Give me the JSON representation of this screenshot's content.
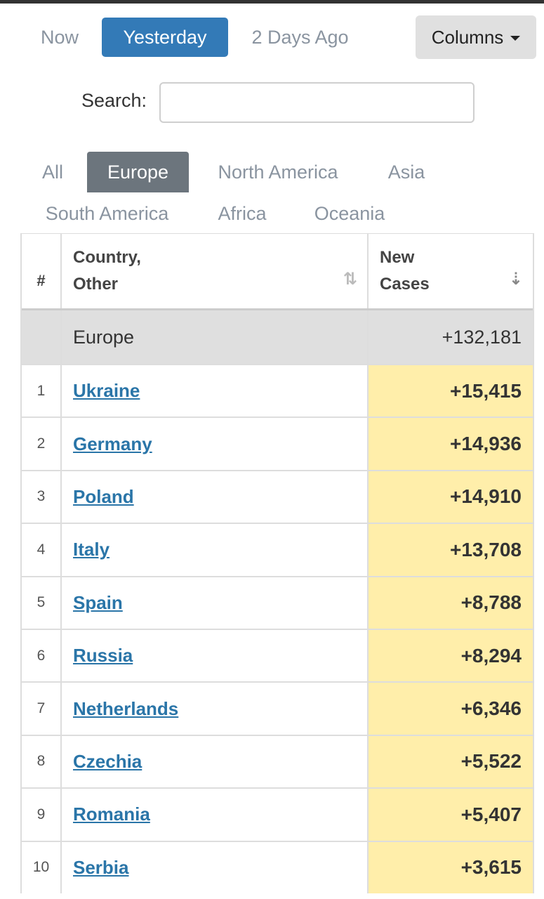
{
  "day_tabs": [
    "Now",
    "Yesterday",
    "2 Days Ago"
  ],
  "active_day": "Yesterday",
  "columns_button": "Columns",
  "search": {
    "label": "Search:",
    "value": "",
    "placeholder": ""
  },
  "continent_tabs": [
    "All",
    "Europe",
    "North America",
    "Asia",
    "South America",
    "Africa",
    "Oceania"
  ],
  "active_continent": "Europe",
  "table": {
    "headers": {
      "num": "#",
      "country_line1": "Country,",
      "country_line2": "Other",
      "cases_line1": "New",
      "cases_line2": "Cases"
    },
    "total": {
      "name": "Europe",
      "new_cases": "+132,181"
    },
    "rows": [
      {
        "num": "1",
        "country": "Ukraine",
        "new_cases": "+15,415"
      },
      {
        "num": "2",
        "country": "Germany",
        "new_cases": "+14,936"
      },
      {
        "num": "3",
        "country": "Poland",
        "new_cases": "+14,910"
      },
      {
        "num": "4",
        "country": "Italy",
        "new_cases": "+13,708"
      },
      {
        "num": "5",
        "country": "Spain",
        "new_cases": "+8,788"
      },
      {
        "num": "6",
        "country": "Russia",
        "new_cases": "+8,294"
      },
      {
        "num": "7",
        "country": "Netherlands",
        "new_cases": "+6,346"
      },
      {
        "num": "8",
        "country": "Czechia",
        "new_cases": "+5,522"
      },
      {
        "num": "9",
        "country": "Romania",
        "new_cases": "+5,407"
      },
      {
        "num": "10",
        "country": "Serbia",
        "new_cases": "+3,615"
      }
    ]
  },
  "colors": {
    "active_day_bg": "#337ab7",
    "active_continent_bg": "#6c757d",
    "link": "#2a75a8",
    "highlight": "#ffeeaa"
  }
}
